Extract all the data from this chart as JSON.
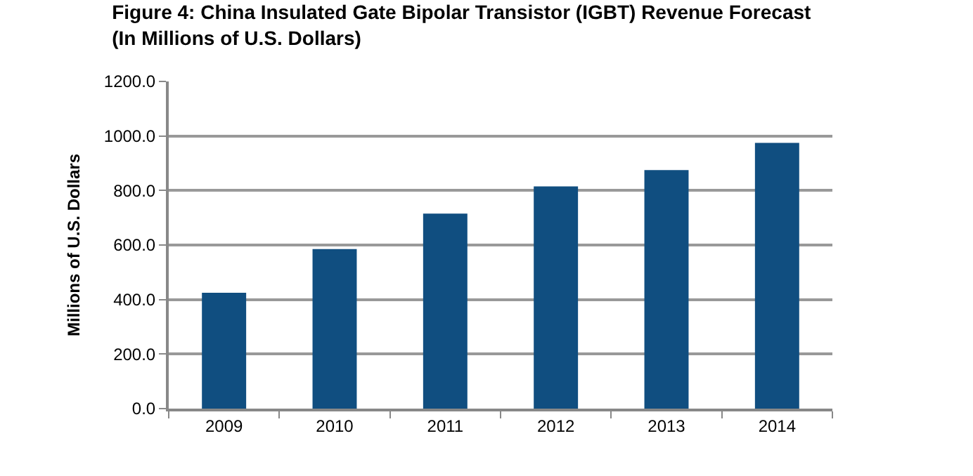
{
  "chart_data": {
    "type": "bar",
    "title": "Figure 4: China Insulated Gate Bipolar Transistor (IGBT) Revenue Forecast\n(In Millions of U.S. Dollars)",
    "ylabel": "Millions of U.S. Dollars",
    "categories": [
      "2009",
      "2010",
      "2011",
      "2012",
      "2013",
      "2014"
    ],
    "values": [
      425,
      585,
      715,
      815,
      875,
      975
    ],
    "color": "#104e80",
    "ylim": [
      0,
      1200
    ],
    "yticks": [
      {
        "value": 0,
        "label": "0.0"
      },
      {
        "value": 200,
        "label": "200.0"
      },
      {
        "value": 400,
        "label": "400.0"
      },
      {
        "value": 600,
        "label": "600.0"
      },
      {
        "value": 800,
        "label": "800.0"
      },
      {
        "value": 1000,
        "label": "1000.0"
      },
      {
        "value": 1200,
        "label": "1200.0"
      }
    ],
    "grid": "y"
  }
}
